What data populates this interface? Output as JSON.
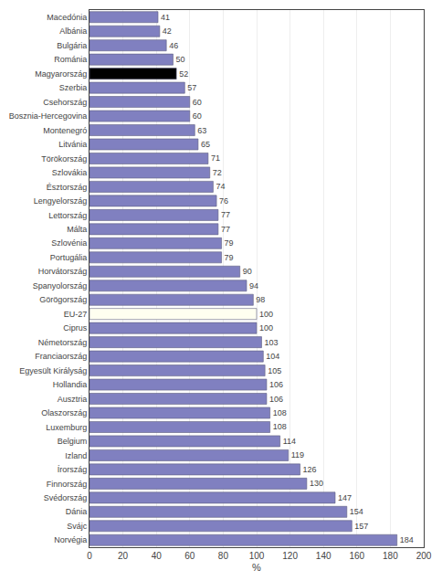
{
  "chart_data": {
    "type": "bar",
    "orientation": "horizontal",
    "categories": [
      "Macedónia",
      "Albánia",
      "Bulgária",
      "Románia",
      "Magyarország",
      "Szerbia",
      "Csehország",
      "Bosznia-Hercegovina",
      "Montenegró",
      "Litvánia",
      "Törökország",
      "Szlovákia",
      "Észtország",
      "Lengyelország",
      "Lettország",
      "Málta",
      "Szlovénia",
      "Portugália",
      "Horvátország",
      "Spanyolország",
      "Görögország",
      "EU-27",
      "Ciprus",
      "Németország",
      "Franciaország",
      "Egyesült Királyság",
      "Hollandia",
      "Ausztria",
      "Olaszország",
      "Luxemburg",
      "Belgium",
      "Izland",
      "Írország",
      "Finnország",
      "Svédország",
      "Dánia",
      "Svájc",
      "Norvégia"
    ],
    "values": [
      41,
      42,
      46,
      50,
      52,
      57,
      60,
      60,
      63,
      65,
      71,
      72,
      74,
      76,
      77,
      77,
      79,
      79,
      90,
      94,
      98,
      100,
      100,
      103,
      104,
      105,
      106,
      106,
      108,
      108,
      114,
      119,
      126,
      130,
      147,
      154,
      157,
      184
    ],
    "colors": [
      "#8080c0",
      "#8080c0",
      "#8080c0",
      "#8080c0",
      "#000000",
      "#8080c0",
      "#8080c0",
      "#8080c0",
      "#8080c0",
      "#8080c0",
      "#8080c0",
      "#8080c0",
      "#8080c0",
      "#8080c0",
      "#8080c0",
      "#8080c0",
      "#8080c0",
      "#8080c0",
      "#8080c0",
      "#8080c0",
      "#8080c0",
      "#fffff0",
      "#8080c0",
      "#8080c0",
      "#8080c0",
      "#8080c0",
      "#8080c0",
      "#8080c0",
      "#8080c0",
      "#8080c0",
      "#8080c0",
      "#8080c0",
      "#8080c0",
      "#8080c0",
      "#8080c0",
      "#8080c0",
      "#8080c0",
      "#8080c0"
    ],
    "xlabel": "%",
    "xlim": [
      0,
      200
    ],
    "xticks": [
      0,
      20,
      40,
      60,
      80,
      100,
      120,
      140,
      160,
      180,
      200
    ],
    "grid": true,
    "data_labels": true
  }
}
